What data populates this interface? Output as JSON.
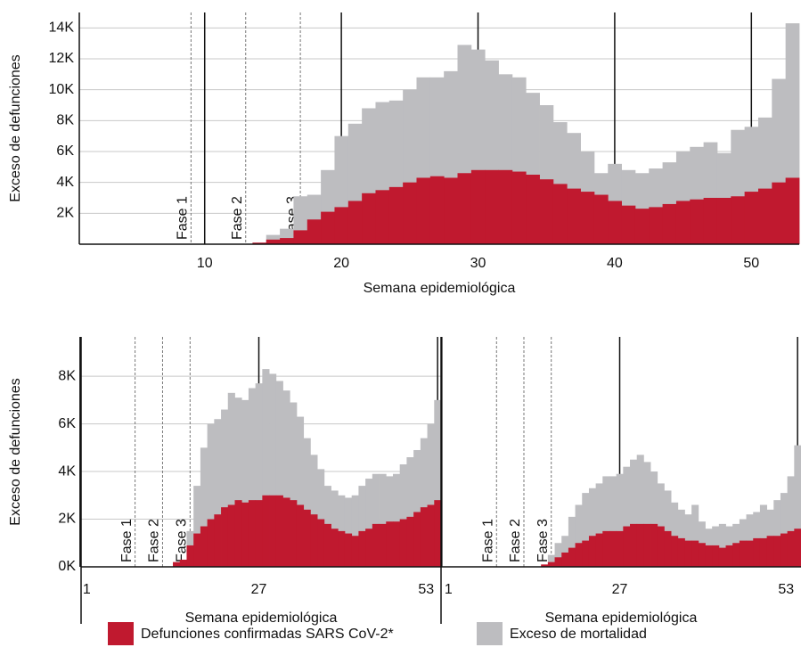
{
  "chart_data": [
    {
      "type": "bar",
      "y_label": "Exceso de defunciones",
      "x_label": "Semana epidemiológica",
      "x": [
        1,
        2,
        3,
        4,
        5,
        6,
        7,
        8,
        9,
        10,
        11,
        12,
        13,
        14,
        15,
        16,
        17,
        18,
        19,
        20,
        21,
        22,
        23,
        24,
        25,
        26,
        27,
        28,
        29,
        30,
        31,
        32,
        33,
        34,
        35,
        36,
        37,
        38,
        39,
        40,
        41,
        42,
        43,
        44,
        45,
        46,
        47,
        48,
        49,
        50,
        51,
        52,
        53
      ],
      "xlim": [
        0.5,
        53.5
      ],
      "xticks": [
        10,
        20,
        30,
        40,
        50
      ],
      "ylim": [
        0,
        15000
      ],
      "yticks": [
        {
          "value": 2000,
          "label": "2K"
        },
        {
          "value": 4000,
          "label": "4K"
        },
        {
          "value": 6000,
          "label": "6K"
        },
        {
          "value": 8000,
          "label": "8K"
        },
        {
          "value": 10000,
          "label": "10K"
        },
        {
          "value": 12000,
          "label": "12K"
        },
        {
          "value": 14000,
          "label": "14K"
        }
      ],
      "grid": true,
      "phases": [
        {
          "label": "Fase 1",
          "x": 9
        },
        {
          "label": "Fase 2",
          "x": 13
        },
        {
          "label": "Fase 3",
          "x": 17
        }
      ],
      "series": [
        {
          "name": "Exceso de mortalidad",
          "color": "#bdbdc0",
          "values": [
            0,
            0,
            0,
            0,
            0,
            0,
            0,
            0,
            0,
            0,
            0,
            0,
            0,
            100,
            600,
            1000,
            3100,
            3200,
            4800,
            7000,
            7800,
            8800,
            9200,
            9300,
            10000,
            10800,
            10800,
            11200,
            12900,
            12600,
            11900,
            11000,
            10800,
            9800,
            9000,
            7900,
            7200,
            6000,
            4600,
            5200,
            4800,
            4600,
            4900,
            5300,
            6000,
            6300,
            6600,
            5900,
            7400,
            7600,
            8200,
            10700,
            14300
          ]
        },
        {
          "name": "Defunciones confirmadas SARS CoV-2*",
          "color": "#c0192f",
          "values": [
            0,
            0,
            0,
            0,
            0,
            0,
            0,
            0,
            0,
            0,
            0,
            0,
            0,
            100,
            300,
            400,
            900,
            1600,
            2100,
            2400,
            2800,
            3300,
            3500,
            3700,
            4000,
            4300,
            4400,
            4300,
            4600,
            4800,
            4800,
            4800,
            4700,
            4500,
            4200,
            3900,
            3600,
            3400,
            3200,
            2800,
            2500,
            2300,
            2400,
            2600,
            2800,
            2900,
            3000,
            3000,
            3100,
            3400,
            3600,
            4000,
            4300
          ]
        }
      ]
    },
    {
      "type": "bar",
      "y_label": "Exceso de defunciones",
      "x_label": "Semana epidemiológica",
      "x": [
        1,
        2,
        3,
        4,
        5,
        6,
        7,
        8,
        9,
        10,
        11,
        12,
        13,
        14,
        15,
        16,
        17,
        18,
        19,
        20,
        21,
        22,
        23,
        24,
        25,
        26,
        27,
        28,
        29,
        30,
        31,
        32,
        33,
        34,
        35,
        36,
        37,
        38,
        39,
        40,
        41,
        42,
        43,
        44,
        45,
        46,
        47,
        48,
        49,
        50,
        51,
        52,
        53
      ],
      "xlim": [
        0.5,
        53.5
      ],
      "xticks": [
        1,
        27,
        53
      ],
      "ylim": [
        0,
        9650
      ],
      "yticks": [
        {
          "value": 0,
          "label": "0K"
        },
        {
          "value": 2000,
          "label": "2K"
        },
        {
          "value": 4000,
          "label": "4K"
        },
        {
          "value": 6000,
          "label": "6K"
        },
        {
          "value": 8000,
          "label": "8K"
        }
      ],
      "grid": true,
      "phases": [
        {
          "label": "Fase 1",
          "x": 9
        },
        {
          "label": "Fase 2",
          "x": 13
        },
        {
          "label": "Fase 3",
          "x": 17
        }
      ],
      "series": [
        {
          "color": "#bdbdc0",
          "values": [
            0,
            0,
            0,
            0,
            0,
            0,
            0,
            0,
            0,
            0,
            0,
            0,
            0,
            0,
            0,
            100,
            1500,
            3400,
            5000,
            6000,
            6200,
            6600,
            7300,
            7100,
            7000,
            7500,
            7700,
            8300,
            8100,
            7800,
            7400,
            6900,
            6300,
            5400,
            4700,
            4100,
            3400,
            3200,
            3000,
            2900,
            3000,
            3400,
            3700,
            3900,
            3900,
            3800,
            3900,
            4300,
            4600,
            4900,
            5400,
            6000,
            7000
          ]
        },
        {
          "color": "#c0192f",
          "values": [
            0,
            0,
            0,
            0,
            0,
            0,
            0,
            0,
            0,
            0,
            0,
            0,
            0,
            0,
            200,
            300,
            900,
            1400,
            1700,
            2000,
            2200,
            2500,
            2600,
            2800,
            2700,
            2800,
            2800,
            3000,
            3000,
            3000,
            2900,
            2800,
            2600,
            2400,
            2200,
            2000,
            1800,
            1600,
            1500,
            1400,
            1300,
            1500,
            1600,
            1800,
            1800,
            1900,
            1900,
            2000,
            2100,
            2300,
            2500,
            2600,
            2800
          ]
        }
      ]
    },
    {
      "type": "bar",
      "x_label": "Semana epidemiológica",
      "x": [
        1,
        2,
        3,
        4,
        5,
        6,
        7,
        8,
        9,
        10,
        11,
        12,
        13,
        14,
        15,
        16,
        17,
        18,
        19,
        20,
        21,
        22,
        23,
        24,
        25,
        26,
        27,
        28,
        29,
        30,
        31,
        32,
        33,
        34,
        35,
        36,
        37,
        38,
        39,
        40,
        41,
        42,
        43,
        44,
        45,
        46,
        47,
        48,
        49,
        50,
        51,
        52,
        53
      ],
      "xlim": [
        0.5,
        53.5
      ],
      "xticks": [
        1,
        27,
        53
      ],
      "ylim": [
        0,
        9650
      ],
      "phases": [
        {
          "label": "Fase 1",
          "x": 9
        },
        {
          "label": "Fase 2",
          "x": 13
        },
        {
          "label": "Fase 3",
          "x": 17
        }
      ],
      "series": [
        {
          "color": "#bdbdc0",
          "values": [
            0,
            0,
            0,
            0,
            0,
            0,
            0,
            0,
            0,
            0,
            0,
            0,
            0,
            0,
            0,
            0,
            500,
            1000,
            1300,
            2100,
            2600,
            3100,
            3300,
            3500,
            3800,
            3800,
            3900,
            4200,
            4500,
            4700,
            4400,
            4000,
            3500,
            3200,
            2700,
            2400,
            2200,
            2600,
            1900,
            1600,
            1700,
            1800,
            1700,
            1800,
            2000,
            2200,
            2300,
            2600,
            2400,
            2800,
            3100,
            3800,
            5100
          ]
        },
        {
          "color": "#c0192f",
          "values": [
            0,
            0,
            0,
            0,
            0,
            0,
            0,
            0,
            0,
            0,
            0,
            0,
            0,
            0,
            0,
            100,
            200,
            400,
            600,
            800,
            1000,
            1100,
            1300,
            1400,
            1500,
            1500,
            1500,
            1700,
            1800,
            1800,
            1800,
            1800,
            1700,
            1500,
            1300,
            1200,
            1100,
            1100,
            1000,
            900,
            900,
            800,
            900,
            1000,
            1100,
            1100,
            1200,
            1200,
            1300,
            1300,
            1400,
            1500,
            1600
          ]
        }
      ]
    }
  ]
}
